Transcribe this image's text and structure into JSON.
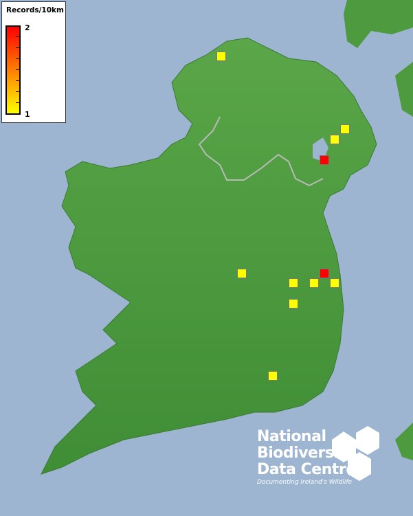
{
  "legend": {
    "title": "Records/10km",
    "max_label": "2",
    "min_label": "1",
    "color_max": "#ff0000",
    "color_min": "#ffff00"
  },
  "records": [
    {
      "value": 1
    },
    {
      "value": 1
    },
    {
      "value": 1
    },
    {
      "value": 2
    },
    {
      "value": 1
    },
    {
      "value": 2
    },
    {
      "value": 1
    },
    {
      "value": 1
    },
    {
      "value": 1
    },
    {
      "value": 1
    },
    {
      "value": 1
    }
  ],
  "logo": {
    "line1": "National",
    "line2": "Biodiversity",
    "line3": "Data Centre",
    "tagline": "Documenting Ireland's Wildlife"
  },
  "colors": {
    "sea": "#9db5d0",
    "land": "#4e9a3e",
    "border": "#b9b9b9"
  }
}
